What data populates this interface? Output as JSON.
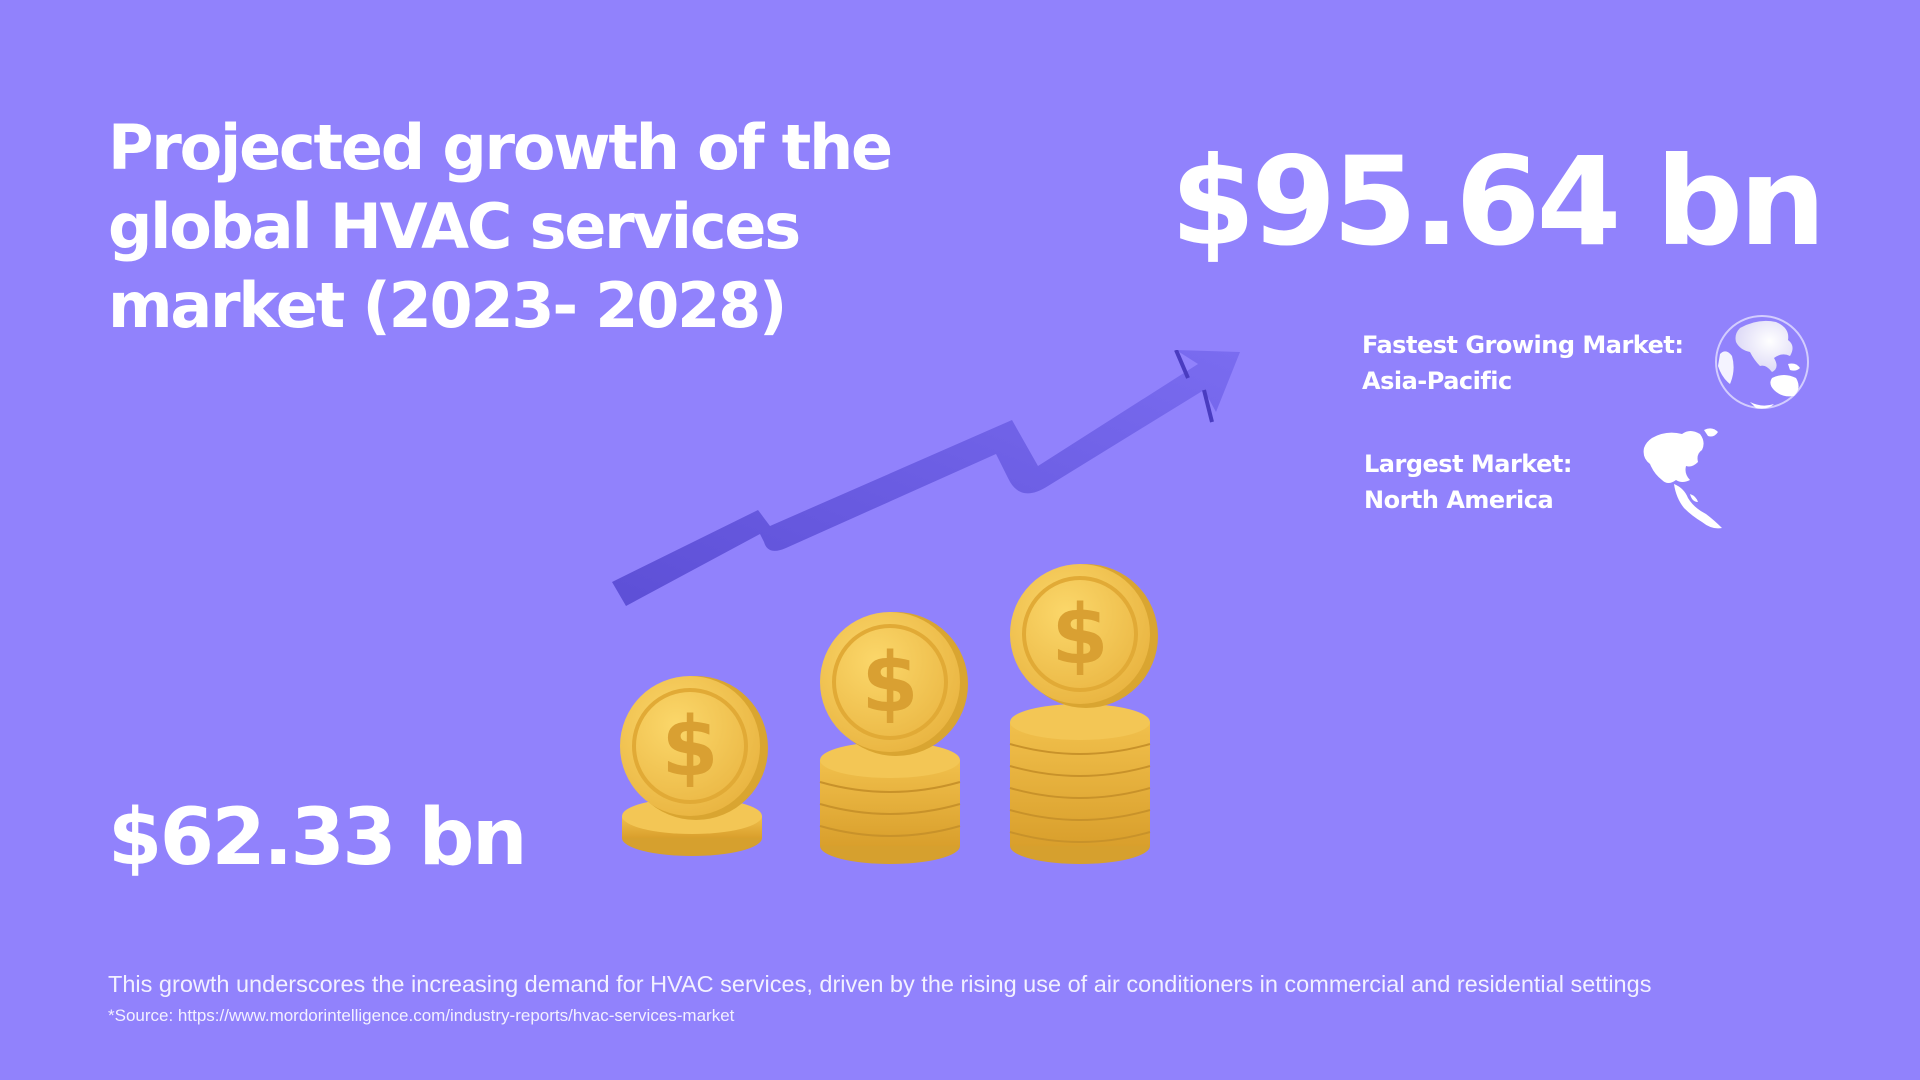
{
  "title": {
    "line1": "Projected growth of the",
    "line2": "global HVAC services",
    "line3": "market (2023- 2028)"
  },
  "value_2028": "$95.64 bn",
  "value_2023": "$62.33 bn",
  "fastest_growing": {
    "label": "Fastest Growing Market:",
    "region": "Asia-Pacific",
    "icon": "globe-asia-pacific-icon"
  },
  "largest": {
    "label": "Largest Market:",
    "region": "North America",
    "icon": "globe-north-america-icon"
  },
  "graphic": {
    "coin_symbol": "$",
    "icon": "rising-arrow-coin-stacks-illustration"
  },
  "footnote": "This growth underscores the increasing demand for HVAC services, driven by the rising use of air conditioners in commercial and residential settings",
  "source": "*Source: https://www.mordorintelligence.com/industry-reports/hvac-services-market",
  "colors": {
    "background": "#9182fc",
    "text": "#ffffff",
    "arrow": "#6a5ae0",
    "coin": "#f5c651",
    "coin_shadow": "#d9a531"
  }
}
